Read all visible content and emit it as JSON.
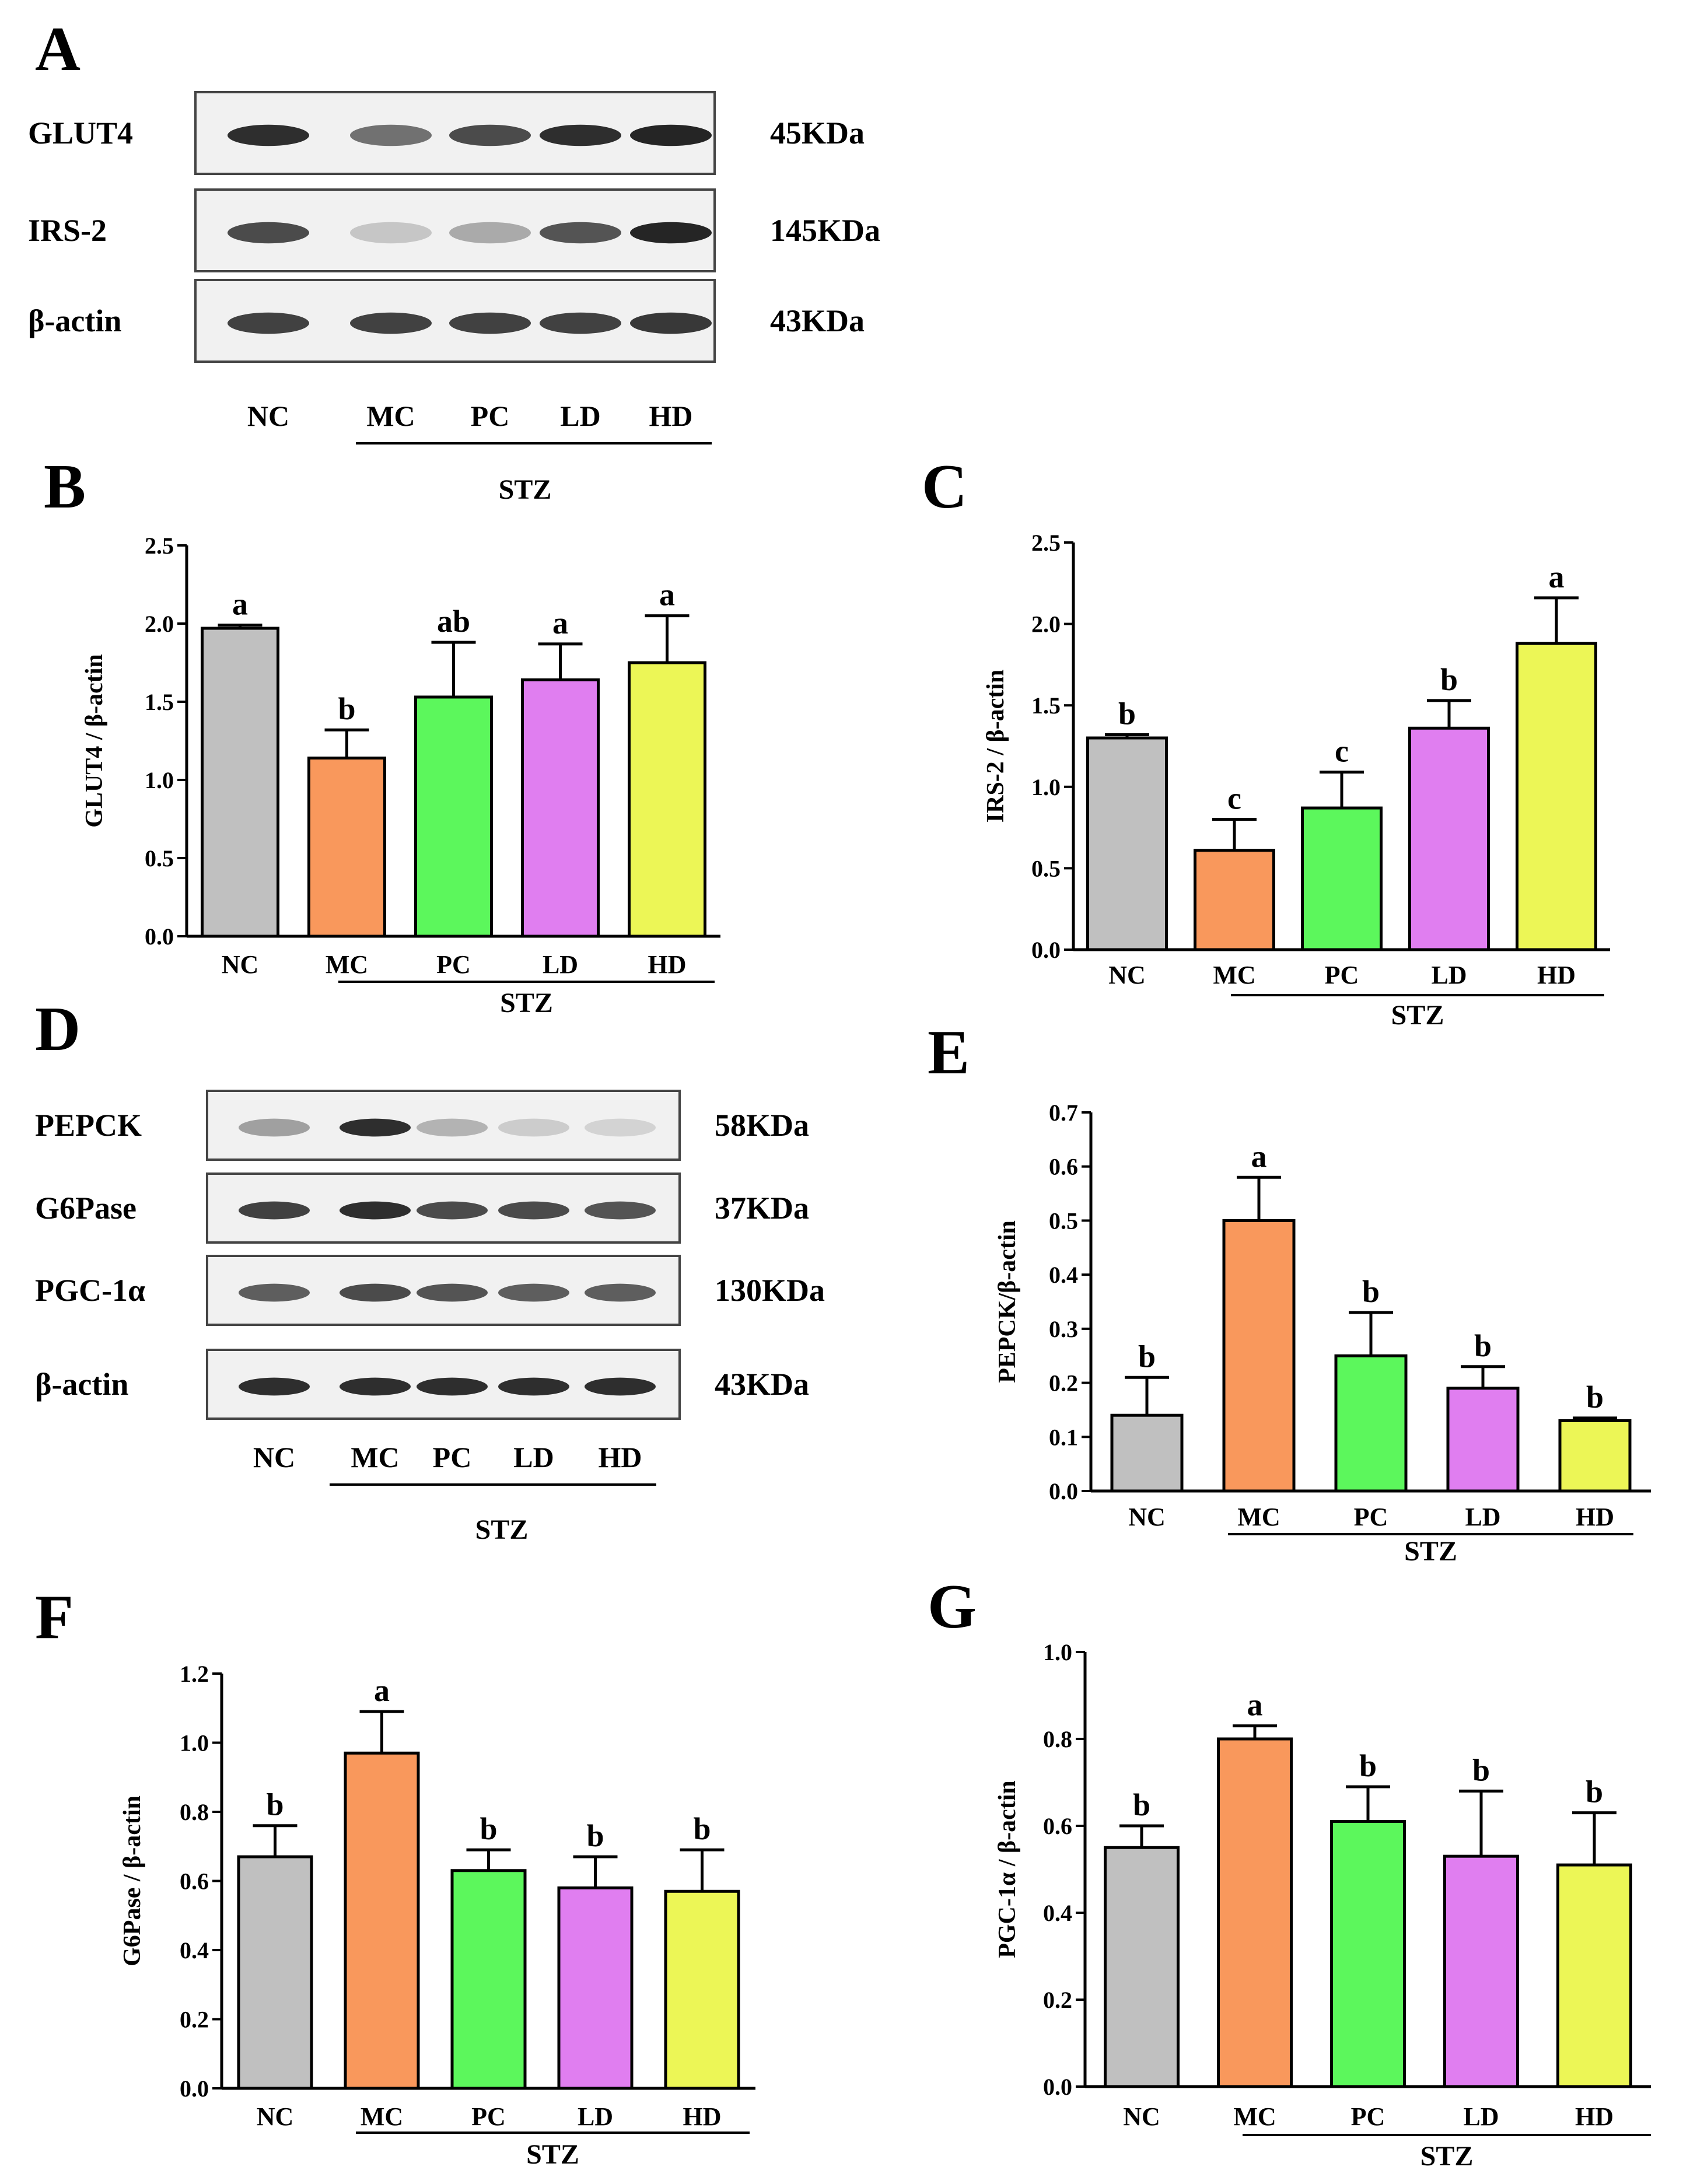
{
  "colors": {
    "NC": "#c0c0c0",
    "MC": "#f9985c",
    "PC": "#5cf75c",
    "LD": "#e07ef0",
    "HD": "#ecf656"
  },
  "blots": [
    {
      "letter": "A",
      "rows": [
        {
          "protein": "GLUT4",
          "kda": "45KDa",
          "intensity": [
            0.95,
            0.6,
            0.8,
            0.95,
            1.0
          ]
        },
        {
          "protein": "IRS-2",
          "kda": "145KDa",
          "intensity": [
            0.8,
            0.15,
            0.3,
            0.75,
            1.0
          ]
        },
        {
          "protein": "β-actin",
          "kda": "43KDa",
          "intensity": [
            0.85,
            0.85,
            0.85,
            0.85,
            0.9
          ]
        }
      ],
      "lanes": [
        "NC",
        "MC",
        "PC",
        "LD",
        "HD"
      ],
      "stz": "STZ"
    },
    {
      "letter": "D",
      "rows": [
        {
          "protein": "PEPCK",
          "kda": "58KDa",
          "intensity": [
            0.35,
            0.95,
            0.25,
            0.12,
            0.08
          ]
        },
        {
          "protein": "G6Pase",
          "kda": "37KDa",
          "intensity": [
            0.85,
            0.95,
            0.8,
            0.8,
            0.75
          ]
        },
        {
          "protein": "PGC-1α",
          "kda": "130KDa",
          "intensity": [
            0.7,
            0.8,
            0.75,
            0.7,
            0.7
          ]
        },
        {
          "protein": "β-actin",
          "kda": "43KDa",
          "intensity": [
            0.95,
            0.95,
            0.95,
            0.95,
            0.95
          ]
        }
      ],
      "lanes": [
        "NC",
        "MC",
        "PC",
        "LD",
        "HD"
      ],
      "stz": "STZ"
    }
  ],
  "chart_data": [
    {
      "panel": "B",
      "type": "bar",
      "categories": [
        "NC",
        "MC",
        "PC",
        "LD",
        "HD"
      ],
      "values": [
        1.97,
        1.14,
        1.53,
        1.64,
        1.75
      ],
      "errors": [
        0.02,
        0.18,
        0.35,
        0.23,
        0.3
      ],
      "letters": [
        "a",
        "b",
        "ab",
        "a",
        "a"
      ],
      "ylabel": "GLUT4 / β-actin",
      "ylim": [
        0,
        2.5
      ],
      "yticks": [
        "0.0",
        "0.5",
        "1.0",
        "1.5",
        "2.0",
        "2.5"
      ],
      "group_label": "STZ"
    },
    {
      "panel": "C",
      "type": "bar",
      "categories": [
        "NC",
        "MC",
        "PC",
        "LD",
        "HD"
      ],
      "values": [
        1.3,
        0.61,
        0.87,
        1.36,
        1.88
      ],
      "errors": [
        0.02,
        0.19,
        0.22,
        0.17,
        0.28
      ],
      "letters": [
        "b",
        "c",
        "c",
        "b",
        "a"
      ],
      "ylabel": "IRS-2 / β-actin",
      "ylim": [
        0,
        2.5
      ],
      "yticks": [
        "0.0",
        "0.5",
        "1.0",
        "1.5",
        "2.0",
        "2.5"
      ],
      "group_label": "STZ"
    },
    {
      "panel": "E",
      "type": "bar",
      "categories": [
        "NC",
        "MC",
        "PC",
        "LD",
        "HD"
      ],
      "values": [
        0.14,
        0.5,
        0.25,
        0.19,
        0.13
      ],
      "errors": [
        0.07,
        0.08,
        0.08,
        0.04,
        0.005
      ],
      "letters": [
        "b",
        "a",
        "b",
        "b",
        "b"
      ],
      "ylabel": "PEPCK/β-actin",
      "ylim": [
        0,
        0.7
      ],
      "yticks": [
        "0.0",
        "0.1",
        "0.2",
        "0.3",
        "0.4",
        "0.5",
        "0.6",
        "0.7"
      ],
      "group_label": "STZ"
    },
    {
      "panel": "F",
      "type": "bar",
      "categories": [
        "NC",
        "MC",
        "PC",
        "LD",
        "HD"
      ],
      "values": [
        0.67,
        0.97,
        0.63,
        0.58,
        0.57
      ],
      "errors": [
        0.09,
        0.12,
        0.06,
        0.09,
        0.12
      ],
      "letters": [
        "b",
        "a",
        "b",
        "b",
        "b"
      ],
      "ylabel": "G6Pase / β-actin",
      "ylim": [
        0,
        1.2
      ],
      "yticks": [
        "0.0",
        "0.2",
        "0.4",
        "0.6",
        "0.8",
        "1.0",
        "1.2"
      ],
      "group_label": "STZ"
    },
    {
      "panel": "G",
      "type": "bar",
      "categories": [
        "NC",
        "MC",
        "PC",
        "LD",
        "HD"
      ],
      "values": [
        0.55,
        0.8,
        0.61,
        0.53,
        0.51
      ],
      "errors": [
        0.05,
        0.03,
        0.08,
        0.15,
        0.12
      ],
      "letters": [
        "b",
        "a",
        "b",
        "b",
        "b"
      ],
      "ylabel": "PGC-1α / β-actin",
      "ylim": [
        0,
        1.0
      ],
      "yticks": [
        "0.0",
        "0.2",
        "0.4",
        "0.6",
        "0.8",
        "1.0"
      ],
      "group_label": "STZ"
    }
  ]
}
